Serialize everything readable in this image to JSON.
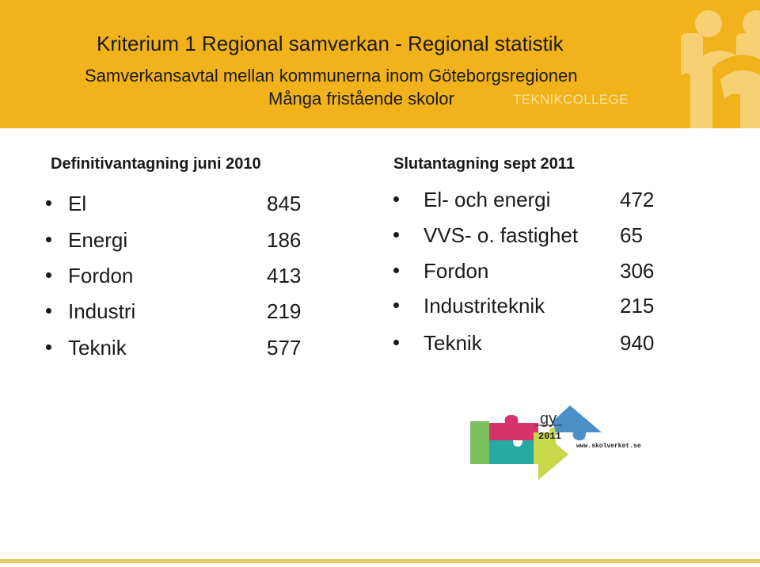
{
  "header": {
    "title": "Kriterium 1 Regional samverkan - Regional statistik",
    "line2": "Samverkansavtal mellan kommunerna inom Göteborgsregionen",
    "line3": "Många fristående skolor",
    "brand": "TEKNIKCOLLEGE",
    "colors": {
      "background": "#f2b21b",
      "brand_text": "#fbe2a3",
      "emblem": "#f6d174"
    }
  },
  "left": {
    "heading": "Definitivantagning juni 2010",
    "items": [
      {
        "name": "El",
        "value": "845"
      },
      {
        "name": "Energi",
        "value": "186"
      },
      {
        "name": "Fordon",
        "value": "413"
      },
      {
        "name": "Industri",
        "value": "219"
      },
      {
        "name": "Teknik",
        "value": "577"
      }
    ]
  },
  "right": {
    "heading": "Slutantagning sept 2011",
    "items": [
      {
        "name": "El- och energi",
        "value": "472"
      },
      {
        "name": "VVS- o. fastighet",
        "value": "65"
      },
      {
        "name": "Fordon",
        "value": "306"
      },
      {
        "name": "Industriteknik",
        "value": "215"
      },
      {
        "name": "Teknik",
        "value": "940"
      }
    ]
  },
  "logo": {
    "gy": "gy",
    "year": "2011",
    "url": "www.skolverket.se",
    "colors": {
      "green": "#7bbf5e",
      "magenta": "#d6336b",
      "teal": "#27aaa3",
      "lime": "#c7d84a",
      "blue": "#4a90c8"
    }
  }
}
